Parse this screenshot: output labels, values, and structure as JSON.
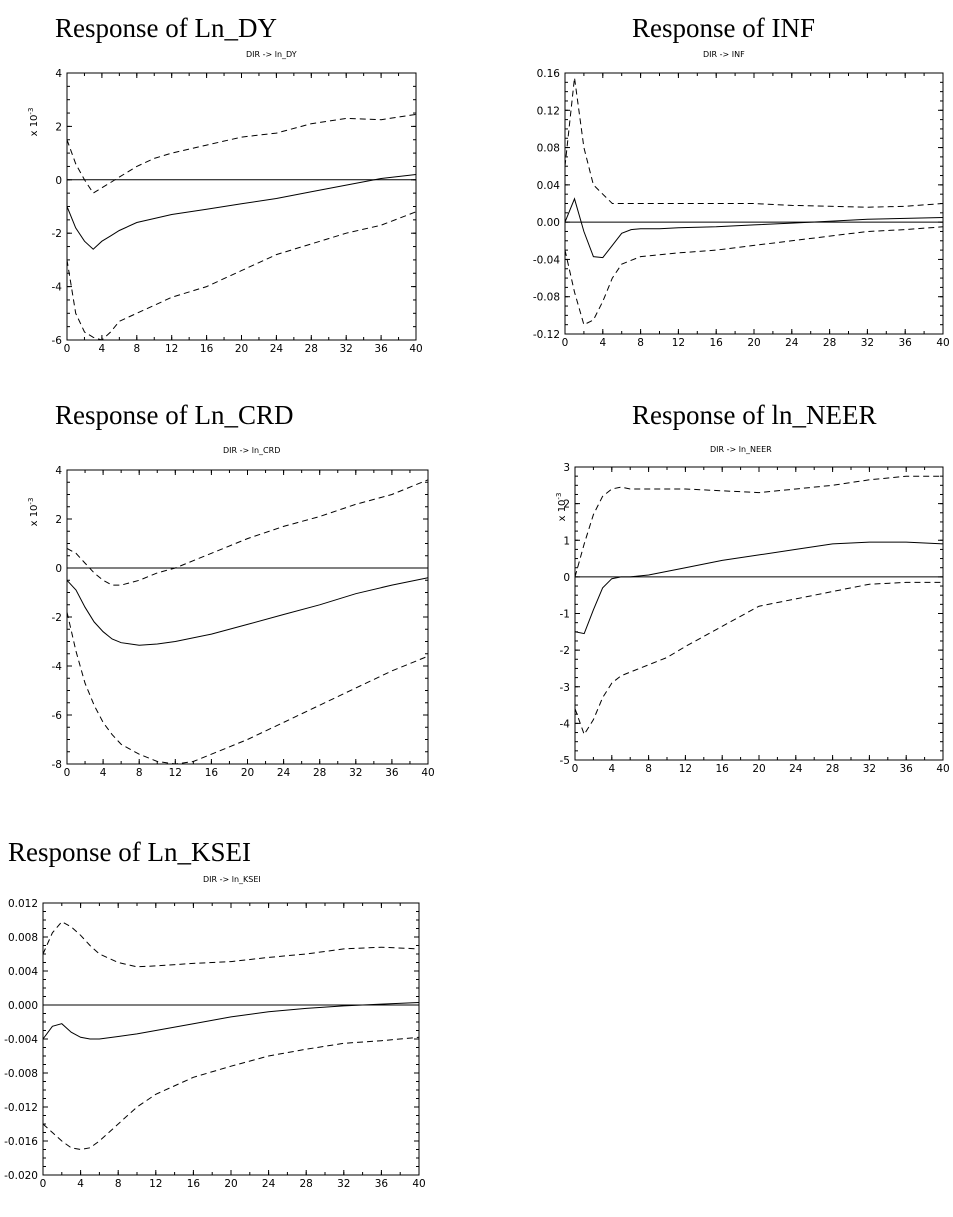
{
  "chart_data": [
    {
      "type": "line",
      "title": "Response of Ln_DY",
      "subtitle": "DIR -> ln_DY",
      "scale_label": "x 10^-3",
      "xlim": [
        0,
        40
      ],
      "ylim": [
        -6,
        4
      ],
      "xticks": [
        "0",
        "4",
        "8",
        "12",
        "16",
        "20",
        "24",
        "28",
        "32",
        "36",
        "40"
      ],
      "yticks": [
        "4",
        "2",
        "0",
        "-2",
        "-4",
        "-6"
      ],
      "series": [
        {
          "role": "response",
          "x": [
            0,
            1,
            2,
            3,
            4,
            5,
            6,
            8,
            10,
            12,
            16,
            20,
            24,
            28,
            32,
            36,
            40
          ],
          "y": [
            -1.0,
            -1.8,
            -2.3,
            -2.6,
            -2.3,
            -2.1,
            -1.9,
            -1.6,
            -1.45,
            -1.3,
            -1.1,
            -0.9,
            -0.7,
            -0.45,
            -0.2,
            0.05,
            0.2
          ]
        },
        {
          "role": "upper",
          "x": [
            0,
            1,
            2,
            3,
            4,
            5,
            6,
            8,
            10,
            12,
            16,
            20,
            24,
            28,
            32,
            36,
            40
          ],
          "y": [
            1.5,
            0.6,
            0.0,
            -0.5,
            -0.3,
            -0.1,
            0.1,
            0.5,
            0.8,
            1.0,
            1.3,
            1.6,
            1.75,
            2.1,
            2.3,
            2.25,
            2.45
          ]
        },
        {
          "role": "lower",
          "x": [
            0,
            1,
            2,
            3,
            4,
            5,
            6,
            8,
            10,
            12,
            16,
            20,
            24,
            28,
            32,
            36,
            40
          ],
          "y": [
            -3.0,
            -5.0,
            -5.7,
            -5.9,
            -6.0,
            -5.7,
            -5.3,
            -5.0,
            -4.7,
            -4.4,
            -4.0,
            -3.4,
            -2.8,
            -2.4,
            -2.0,
            -1.7,
            -1.2
          ]
        }
      ]
    },
    {
      "type": "line",
      "title": "Response of INF",
      "subtitle": "DIR -> INF",
      "scale_label": "",
      "xlim": [
        0,
        40
      ],
      "ylim": [
        -0.12,
        0.16
      ],
      "xticks": [
        "0",
        "4",
        "8",
        "12",
        "16",
        "20",
        "24",
        "28",
        "32",
        "36",
        "40"
      ],
      "yticks": [
        "0.16",
        "0.12",
        "0.08",
        "0.04",
        "0.00",
        "-0.04",
        "-0.08",
        "-0.12"
      ],
      "series": [
        {
          "role": "response",
          "x": [
            0,
            1,
            2,
            3,
            4,
            5,
            6,
            7,
            8,
            10,
            12,
            16,
            20,
            24,
            28,
            32,
            36,
            40
          ],
          "y": [
            0.0,
            0.025,
            -0.01,
            -0.037,
            -0.038,
            -0.025,
            -0.012,
            -0.008,
            -0.007,
            -0.007,
            -0.006,
            -0.005,
            -0.003,
            -0.001,
            0.001,
            0.003,
            0.004,
            0.005
          ]
        },
        {
          "role": "upper",
          "x": [
            0,
            1,
            2,
            3,
            4,
            5,
            6,
            8,
            10,
            12,
            16,
            20,
            24,
            28,
            32,
            36,
            40
          ],
          "y": [
            0.06,
            0.155,
            0.08,
            0.04,
            0.03,
            0.02,
            0.02,
            0.02,
            0.02,
            0.02,
            0.02,
            0.02,
            0.018,
            0.017,
            0.016,
            0.017,
            0.02
          ]
        },
        {
          "role": "lower",
          "x": [
            0,
            1,
            2,
            3,
            4,
            5,
            6,
            8,
            10,
            12,
            16,
            20,
            24,
            28,
            32,
            36,
            40
          ],
          "y": [
            -0.03,
            -0.075,
            -0.11,
            -0.105,
            -0.085,
            -0.06,
            -0.045,
            -0.037,
            -0.035,
            -0.033,
            -0.03,
            -0.025,
            -0.02,
            -0.015,
            -0.01,
            -0.008,
            -0.005
          ]
        }
      ]
    },
    {
      "type": "line",
      "title": "Response of Ln_CRD",
      "subtitle": "DIR -> ln_CRD",
      "scale_label": "x 10^-3",
      "xlim": [
        0,
        40
      ],
      "ylim": [
        -8,
        4
      ],
      "xticks": [
        "0",
        "4",
        "8",
        "12",
        "16",
        "20",
        "24",
        "28",
        "32",
        "36",
        "40"
      ],
      "yticks": [
        "4",
        "2",
        "0",
        "-2",
        "-4",
        "-6",
        "-8"
      ],
      "series": [
        {
          "role": "response",
          "x": [
            0,
            1,
            2,
            3,
            4,
            5,
            6,
            8,
            10,
            12,
            16,
            20,
            24,
            28,
            32,
            36,
            40
          ],
          "y": [
            -0.5,
            -0.9,
            -1.6,
            -2.2,
            -2.6,
            -2.9,
            -3.05,
            -3.15,
            -3.1,
            -3.0,
            -2.7,
            -2.3,
            -1.9,
            -1.5,
            -1.05,
            -0.7,
            -0.4
          ]
        },
        {
          "role": "upper",
          "x": [
            0,
            1,
            2,
            3,
            4,
            5,
            6,
            8,
            10,
            12,
            16,
            20,
            24,
            28,
            32,
            36,
            40
          ],
          "y": [
            0.8,
            0.6,
            0.2,
            -0.2,
            -0.5,
            -0.7,
            -0.7,
            -0.5,
            -0.2,
            0.0,
            0.6,
            1.2,
            1.7,
            2.1,
            2.6,
            3.0,
            3.6
          ]
        },
        {
          "role": "lower",
          "x": [
            0,
            1,
            2,
            3,
            4,
            5,
            6,
            8,
            10,
            12,
            14,
            16,
            20,
            24,
            28,
            32,
            36,
            40
          ],
          "y": [
            -1.8,
            -3.4,
            -4.7,
            -5.6,
            -6.3,
            -6.8,
            -7.2,
            -7.6,
            -7.9,
            -8.0,
            -7.9,
            -7.6,
            -7.0,
            -6.3,
            -5.6,
            -4.9,
            -4.2,
            -3.6
          ]
        }
      ]
    },
    {
      "type": "line",
      "title": "Response of ln_NEER",
      "subtitle": "DIR -> ln_NEER",
      "scale_label": "x 10^-3",
      "xlim": [
        0,
        40
      ],
      "ylim": [
        -5,
        3
      ],
      "xticks": [
        "0",
        "4",
        "8",
        "12",
        "16",
        "20",
        "24",
        "28",
        "32",
        "36",
        "40"
      ],
      "yticks": [
        "3",
        "2",
        "1",
        "0",
        "-1",
        "-2",
        "-3",
        "-4",
        "-5"
      ],
      "series": [
        {
          "role": "response",
          "x": [
            0,
            1,
            2,
            3,
            4,
            5,
            6,
            8,
            10,
            12,
            16,
            20,
            24,
            28,
            32,
            36,
            40
          ],
          "y": [
            -1.5,
            -1.55,
            -0.9,
            -0.3,
            -0.05,
            0.0,
            0.0,
            0.05,
            0.15,
            0.25,
            0.45,
            0.6,
            0.75,
            0.9,
            0.95,
            0.95,
            0.9
          ]
        },
        {
          "role": "upper",
          "x": [
            0,
            1,
            2,
            3,
            4,
            5,
            6,
            8,
            10,
            12,
            16,
            20,
            24,
            28,
            32,
            36,
            40
          ],
          "y": [
            0.0,
            0.9,
            1.7,
            2.2,
            2.4,
            2.45,
            2.4,
            2.4,
            2.4,
            2.4,
            2.35,
            2.3,
            2.4,
            2.5,
            2.65,
            2.75,
            2.75
          ]
        },
        {
          "role": "lower",
          "x": [
            0,
            1,
            2,
            3,
            4,
            5,
            6,
            8,
            10,
            12,
            16,
            20,
            24,
            28,
            32,
            36,
            40
          ],
          "y": [
            -3.6,
            -4.3,
            -3.9,
            -3.3,
            -2.9,
            -2.7,
            -2.6,
            -2.4,
            -2.2,
            -1.9,
            -1.35,
            -0.8,
            -0.6,
            -0.4,
            -0.2,
            -0.15,
            -0.15
          ]
        }
      ]
    },
    {
      "type": "line",
      "title": "Response of Ln_KSEI",
      "subtitle": "DIR -> ln_KSEI",
      "scale_label": "",
      "xlim": [
        0,
        40
      ],
      "ylim": [
        -0.02,
        0.012
      ],
      "xticks": [
        "0",
        "4",
        "8",
        "12",
        "16",
        "20",
        "24",
        "28",
        "32",
        "36",
        "40"
      ],
      "yticks": [
        "0.012",
        "0.008",
        "0.004",
        "0.000",
        "-0.004",
        "-0.008",
        "-0.012",
        "-0.016",
        "-0.020"
      ],
      "series": [
        {
          "role": "response",
          "x": [
            0,
            1,
            2,
            3,
            4,
            5,
            6,
            8,
            10,
            12,
            16,
            20,
            24,
            28,
            32,
            36,
            40
          ],
          "y": [
            -0.004,
            -0.0025,
            -0.0022,
            -0.0032,
            -0.0038,
            -0.004,
            -0.004,
            -0.0037,
            -0.0034,
            -0.003,
            -0.0022,
            -0.0014,
            -0.0008,
            -0.0004,
            -0.0001,
            0.0001,
            0.0003
          ]
        },
        {
          "role": "upper",
          "x": [
            0,
            1,
            2,
            3,
            4,
            5,
            6,
            8,
            10,
            12,
            16,
            20,
            24,
            28,
            32,
            36,
            40
          ],
          "y": [
            0.006,
            0.0085,
            0.0098,
            0.0092,
            0.0082,
            0.007,
            0.006,
            0.005,
            0.0045,
            0.0046,
            0.0049,
            0.0051,
            0.0056,
            0.006,
            0.0066,
            0.0068,
            0.0066
          ]
        },
        {
          "role": "lower",
          "x": [
            0,
            1,
            2,
            3,
            4,
            5,
            6,
            8,
            10,
            12,
            16,
            20,
            24,
            28,
            32,
            36,
            40
          ],
          "y": [
            -0.014,
            -0.015,
            -0.016,
            -0.0168,
            -0.017,
            -0.0168,
            -0.016,
            -0.014,
            -0.012,
            -0.0105,
            -0.0085,
            -0.0072,
            -0.006,
            -0.0052,
            -0.0045,
            -0.0042,
            -0.0038
          ]
        }
      ]
    }
  ]
}
